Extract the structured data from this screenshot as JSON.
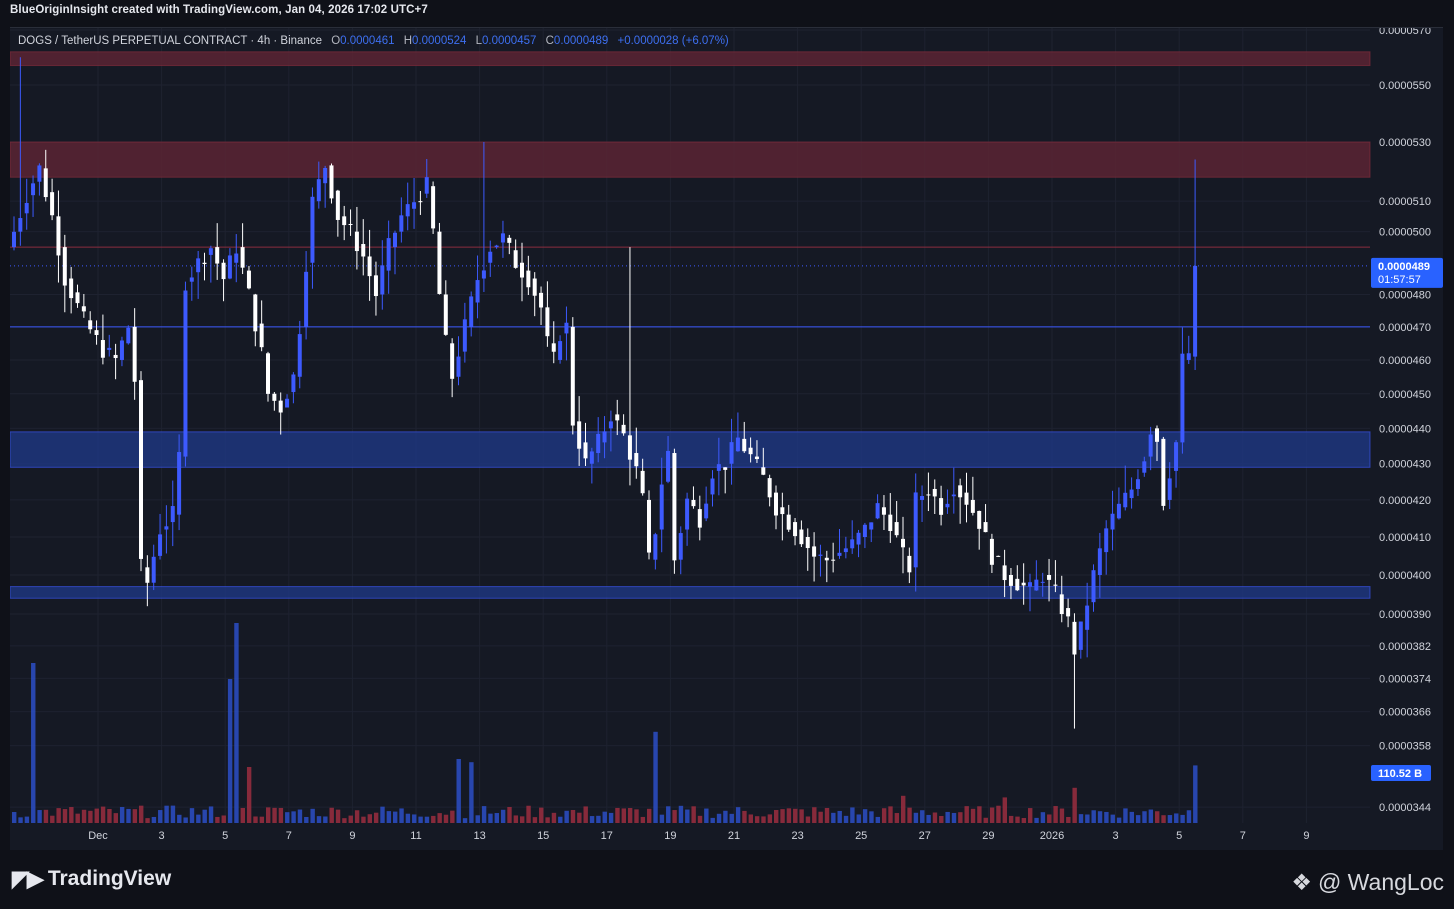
{
  "header": {
    "attribution": "BlueOriginInsight created with TradingView.com, Jan 04, 2026 17:02 UTC+7"
  },
  "legend": {
    "symbol": "DOGS / TetherUS PERPETUAL CONTRACT · 4h · Binance",
    "open_label": "O",
    "open": "0.0000461",
    "high_label": "H",
    "high": "0.0000524",
    "low_label": "L",
    "low": "0.0000457",
    "close_label": "C",
    "close": "0.0000489",
    "change": "+0.0000028 (+6.07%)"
  },
  "footer": {
    "logo_text": "TradingView",
    "watermark": "@ WangLoc"
  },
  "colors": {
    "background": "#151924",
    "up": "#3d5afe",
    "down": "#ffffff",
    "resistance_zone": "#5b2434",
    "support_zone": "#1f3a8a",
    "volume_up": "#2b4fc7",
    "volume_down": "#9b2e3f"
  },
  "chart_data": {
    "type": "candlestick",
    "timeframe": "4h",
    "price_axis": {
      "ticks": [
        "0.0000570",
        "0.0000550",
        "0.0000530",
        "0.0000510",
        "0.0000500",
        "0.0000480",
        "0.0000470",
        "0.0000460",
        "0.0000450",
        "0.0000440",
        "0.0000430",
        "0.0000420",
        "0.0000410",
        "0.0000400",
        "0.0000390",
        "0.0000382",
        "0.0000374",
        "0.0000366",
        "0.0000358",
        "0.0000344"
      ],
      "last_price": "0.0000489",
      "countdown": "01:57:57",
      "volume_label": "110.52 B",
      "scale": "log"
    },
    "time_axis": {
      "ticks": [
        "Dec",
        "3",
        "5",
        "7",
        "9",
        "11",
        "13",
        "15",
        "17",
        "19",
        "21",
        "23",
        "25",
        "27",
        "29",
        "2026",
        "3",
        "5",
        "7",
        "9"
      ]
    },
    "horizontal_lines": [
      {
        "price": 4.95e-05,
        "color": "#8b2d3e"
      },
      {
        "price": 4.7e-05,
        "color": "#3d5afe"
      }
    ],
    "zones": [
      {
        "from": 5.57e-05,
        "to": 5.62e-05,
        "kind": "resistance"
      },
      {
        "from": 5.18e-05,
        "to": 5.3e-05,
        "kind": "resistance"
      },
      {
        "from": 4.29e-05,
        "to": 4.39e-05,
        "kind": "support"
      },
      {
        "from": 3.94e-05,
        "to": 3.97e-05,
        "kind": "support"
      }
    ],
    "price_path": [
      [
        0,
        5e-05
      ],
      [
        2,
        5.12e-05
      ],
      [
        4,
        5.21e-05
      ],
      [
        6,
        5.05e-05
      ],
      [
        8,
        4.85e-05
      ],
      [
        11,
        4.72e-05
      ],
      [
        14,
        4.63e-05
      ],
      [
        16,
        4.6e-05
      ],
      [
        18,
        4.7e-05
      ],
      [
        19,
        4.54e-05
      ],
      [
        20,
        4.02e-05
      ],
      [
        21,
        3.98e-05
      ],
      [
        23,
        4.12e-05
      ],
      [
        25,
        4.16e-05
      ],
      [
        26,
        4.32e-05
      ],
      [
        27,
        4.84e-05
      ],
      [
        29,
        4.9e-05
      ],
      [
        31,
        4.95e-05
      ],
      [
        33,
        4.85e-05
      ],
      [
        35,
        4.95e-05
      ],
      [
        37,
        4.8e-05
      ],
      [
        39,
        4.62e-05
      ],
      [
        40,
        4.5e-05
      ],
      [
        42,
        4.46e-05
      ],
      [
        44,
        4.55e-05
      ],
      [
        45,
        4.7e-05
      ],
      [
        47,
        5.1e-05
      ],
      [
        49,
        5.22e-05
      ],
      [
        51,
        5.05e-05
      ],
      [
        53,
        5e-05
      ],
      [
        55,
        4.92e-05
      ],
      [
        57,
        4.8e-05
      ],
      [
        59,
        4.95e-05
      ],
      [
        61,
        5.05e-05
      ],
      [
        63,
        5.1e-05
      ],
      [
        65,
        5.15e-05
      ],
      [
        66,
        5e-05
      ],
      [
        67,
        4.8e-05
      ],
      [
        68,
        4.65e-05
      ],
      [
        69,
        4.55e-05
      ],
      [
        71,
        4.7e-05
      ],
      [
        73,
        4.85e-05
      ],
      [
        75,
        4.95e-05
      ],
      [
        77,
        4.98e-05
      ],
      [
        79,
        4.9e-05
      ],
      [
        81,
        4.85e-05
      ],
      [
        83,
        4.76e-05
      ],
      [
        84,
        4.65e-05
      ],
      [
        85,
        4.6e-05
      ],
      [
        86,
        4.68e-05
      ],
      [
        87,
        4.7e-05
      ],
      [
        88,
        4.42e-05
      ],
      [
        90,
        4.3e-05
      ],
      [
        92,
        4.36e-05
      ],
      [
        94,
        4.44e-05
      ],
      [
        96,
        4.38e-05
      ],
      [
        98,
        4.28e-05
      ],
      [
        99,
        4.2e-05
      ],
      [
        100,
        4.04e-05
      ],
      [
        101,
        4.12e-05
      ],
      [
        102,
        4.25e-05
      ],
      [
        103,
        4.33e-05
      ],
      [
        104,
        4.04e-05
      ],
      [
        106,
        4.2e-05
      ],
      [
        108,
        4.15e-05
      ],
      [
        110,
        4.28e-05
      ],
      [
        112,
        4.3e-05
      ],
      [
        114,
        4.37e-05
      ],
      [
        116,
        4.32e-05
      ],
      [
        118,
        4.26e-05
      ],
      [
        120,
        4.18e-05
      ],
      [
        122,
        4.14e-05
      ],
      [
        124,
        4.1e-05
      ],
      [
        126,
        4.05e-05
      ],
      [
        128,
        4.04e-05
      ],
      [
        130,
        4.06e-05
      ],
      [
        132,
        4.08e-05
      ],
      [
        134,
        4.12e-05
      ],
      [
        136,
        4.18e-05
      ],
      [
        138,
        4.14e-05
      ],
      [
        140,
        4.05e-05
      ],
      [
        141,
        4.02e-05
      ],
      [
        142,
        4.2e-05
      ],
      [
        144,
        4.23e-05
      ],
      [
        146,
        4.18e-05
      ],
      [
        148,
        4.24e-05
      ],
      [
        150,
        4.2e-05
      ],
      [
        152,
        4.14e-05
      ],
      [
        154,
        4.05e-05
      ],
      [
        156,
        4e-05
      ],
      [
        158,
        3.98e-05
      ],
      [
        160,
        3.96e-05
      ],
      [
        162,
        4e-05
      ],
      [
        164,
        3.95e-05
      ],
      [
        166,
        3.88e-05
      ],
      [
        167,
        3.81e-05
      ],
      [
        168,
        3.86e-05
      ],
      [
        170,
        4e-05
      ],
      [
        172,
        4.12e-05
      ],
      [
        174,
        4.18e-05
      ],
      [
        176,
        4.23e-05
      ],
      [
        178,
        4.32e-05
      ],
      [
        179,
        4.4e-05
      ],
      [
        180,
        4.37e-05
      ],
      [
        181,
        4.2e-05
      ],
      [
        182,
        4.28e-05
      ],
      [
        183,
        4.36e-05
      ],
      [
        184,
        4.6e-05
      ],
      [
        185,
        4.62e-05
      ],
      [
        186,
        4.89e-05
      ]
    ],
    "volume_spikes": [
      {
        "bar": 3,
        "value": 1.0
      },
      {
        "bar": 34,
        "value": 0.9
      },
      {
        "bar": 35,
        "value": 1.25
      },
      {
        "bar": 37,
        "value": 0.35
      },
      {
        "bar": 70,
        "value": 0.4
      },
      {
        "bar": 72,
        "value": 0.38
      },
      {
        "bar": 101,
        "value": 0.57
      },
      {
        "bar": 140,
        "value": 0.17
      },
      {
        "bar": 156,
        "value": 0.16
      },
      {
        "bar": 167,
        "value": 0.22
      },
      {
        "bar": 186,
        "value": 0.36
      }
    ]
  }
}
